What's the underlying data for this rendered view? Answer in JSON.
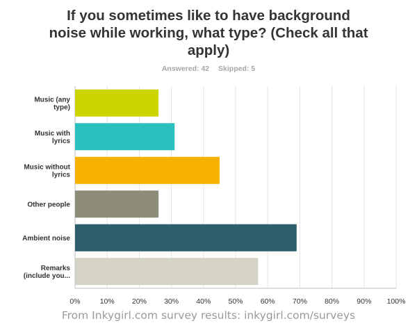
{
  "chart_data": {
    "type": "bar",
    "orientation": "horizontal",
    "title": "If you sometimes like to have background noise while working, what type? (Check all that apply)",
    "answered_label": "Answered: 42",
    "skipped_label": "Skipped: 5",
    "categories": [
      [
        "Music (any",
        "type)"
      ],
      [
        "Music with",
        "lyrics"
      ],
      [
        "Music without",
        "lyrics"
      ],
      [
        "Other people"
      ],
      [
        "Ambient noise"
      ],
      [
        "Remarks",
        "(include you..."
      ]
    ],
    "values": [
      26,
      31,
      45,
      26,
      69,
      57
    ],
    "colors": [
      "#cdd500",
      "#2bbfc0",
      "#f7b100",
      "#8c8c78",
      "#2c5f6b",
      "#d5d3c5"
    ],
    "xlim": [
      0,
      100
    ],
    "x_ticks": [
      "0%",
      "10%",
      "20%",
      "30%",
      "40%",
      "50%",
      "60%",
      "70%",
      "80%",
      "90%",
      "100%"
    ],
    "grid": true
  },
  "footer": "From Inkygirl.com survey results: inkygirl.com/surveys"
}
